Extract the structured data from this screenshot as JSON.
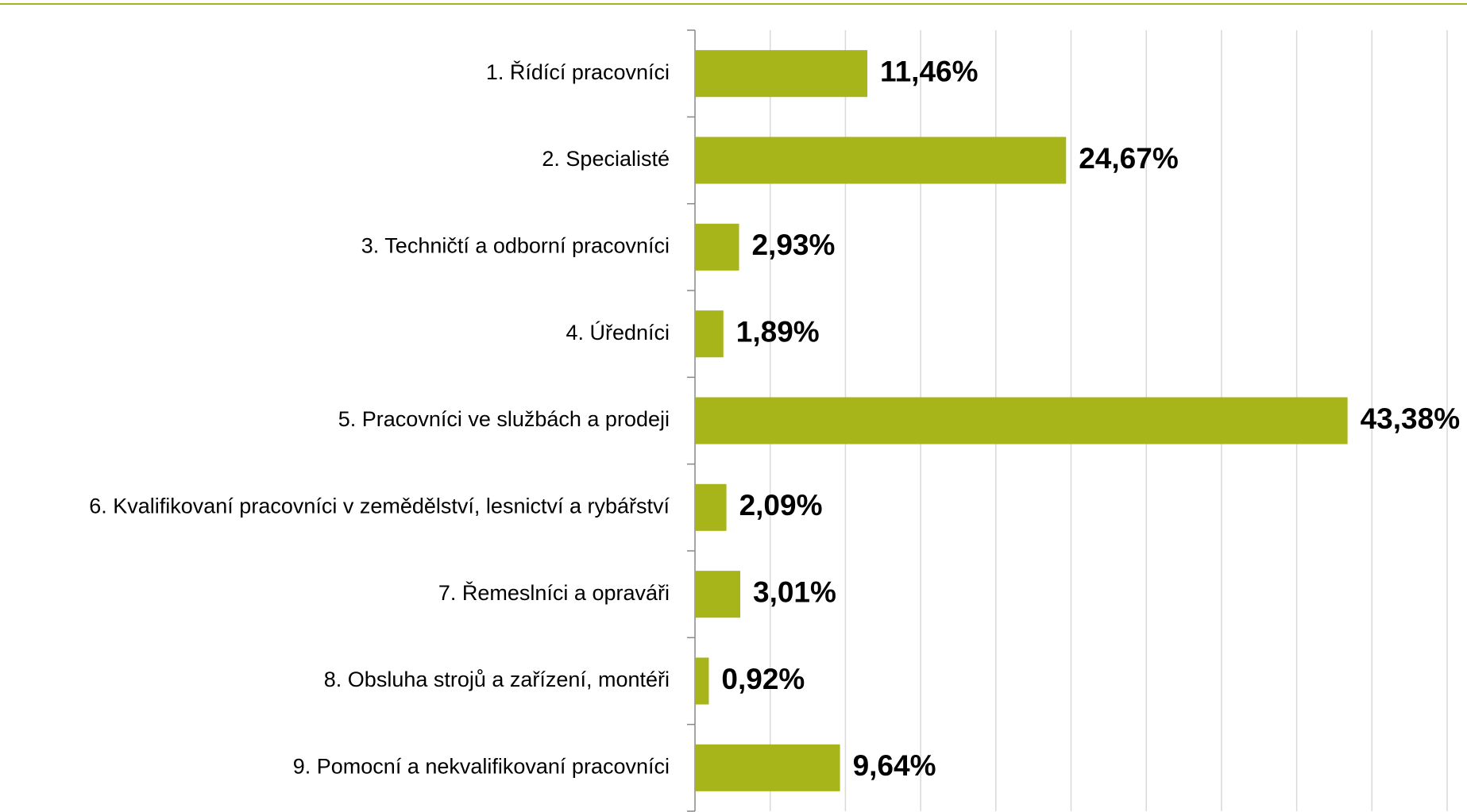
{
  "chart_data": {
    "type": "barh",
    "categories": [
      "1. Řídící pracovníci",
      "2. Specialisté",
      "3. Techničtí a odborní pracovníci",
      "4. Úředníci",
      "5. Pracovníci ve službách a prodeji",
      "6. Kvalifikovaní pracovníci v zemědělství, lesnictví a rybářství",
      "7. Řemeslníci a opraváři",
      "8. Obsluha strojů a zařízení, montéři",
      "9. Pomocní a nekvalifikovaní pracovníci"
    ],
    "values": [
      11.46,
      24.67,
      2.93,
      1.89,
      43.38,
      2.09,
      3.01,
      0.92,
      9.64
    ],
    "value_labels": [
      "11,46%",
      "24,67%",
      "2,93%",
      "1,89%",
      "43,38%",
      "2,09%",
      "3,01%",
      "0,92%",
      "9,64%"
    ],
    "color": "#a8b51a",
    "xlim": [
      0,
      50
    ],
    "xticks": [
      0,
      5,
      10,
      15,
      20,
      25,
      30,
      35,
      40,
      45,
      50
    ],
    "grid": true
  }
}
